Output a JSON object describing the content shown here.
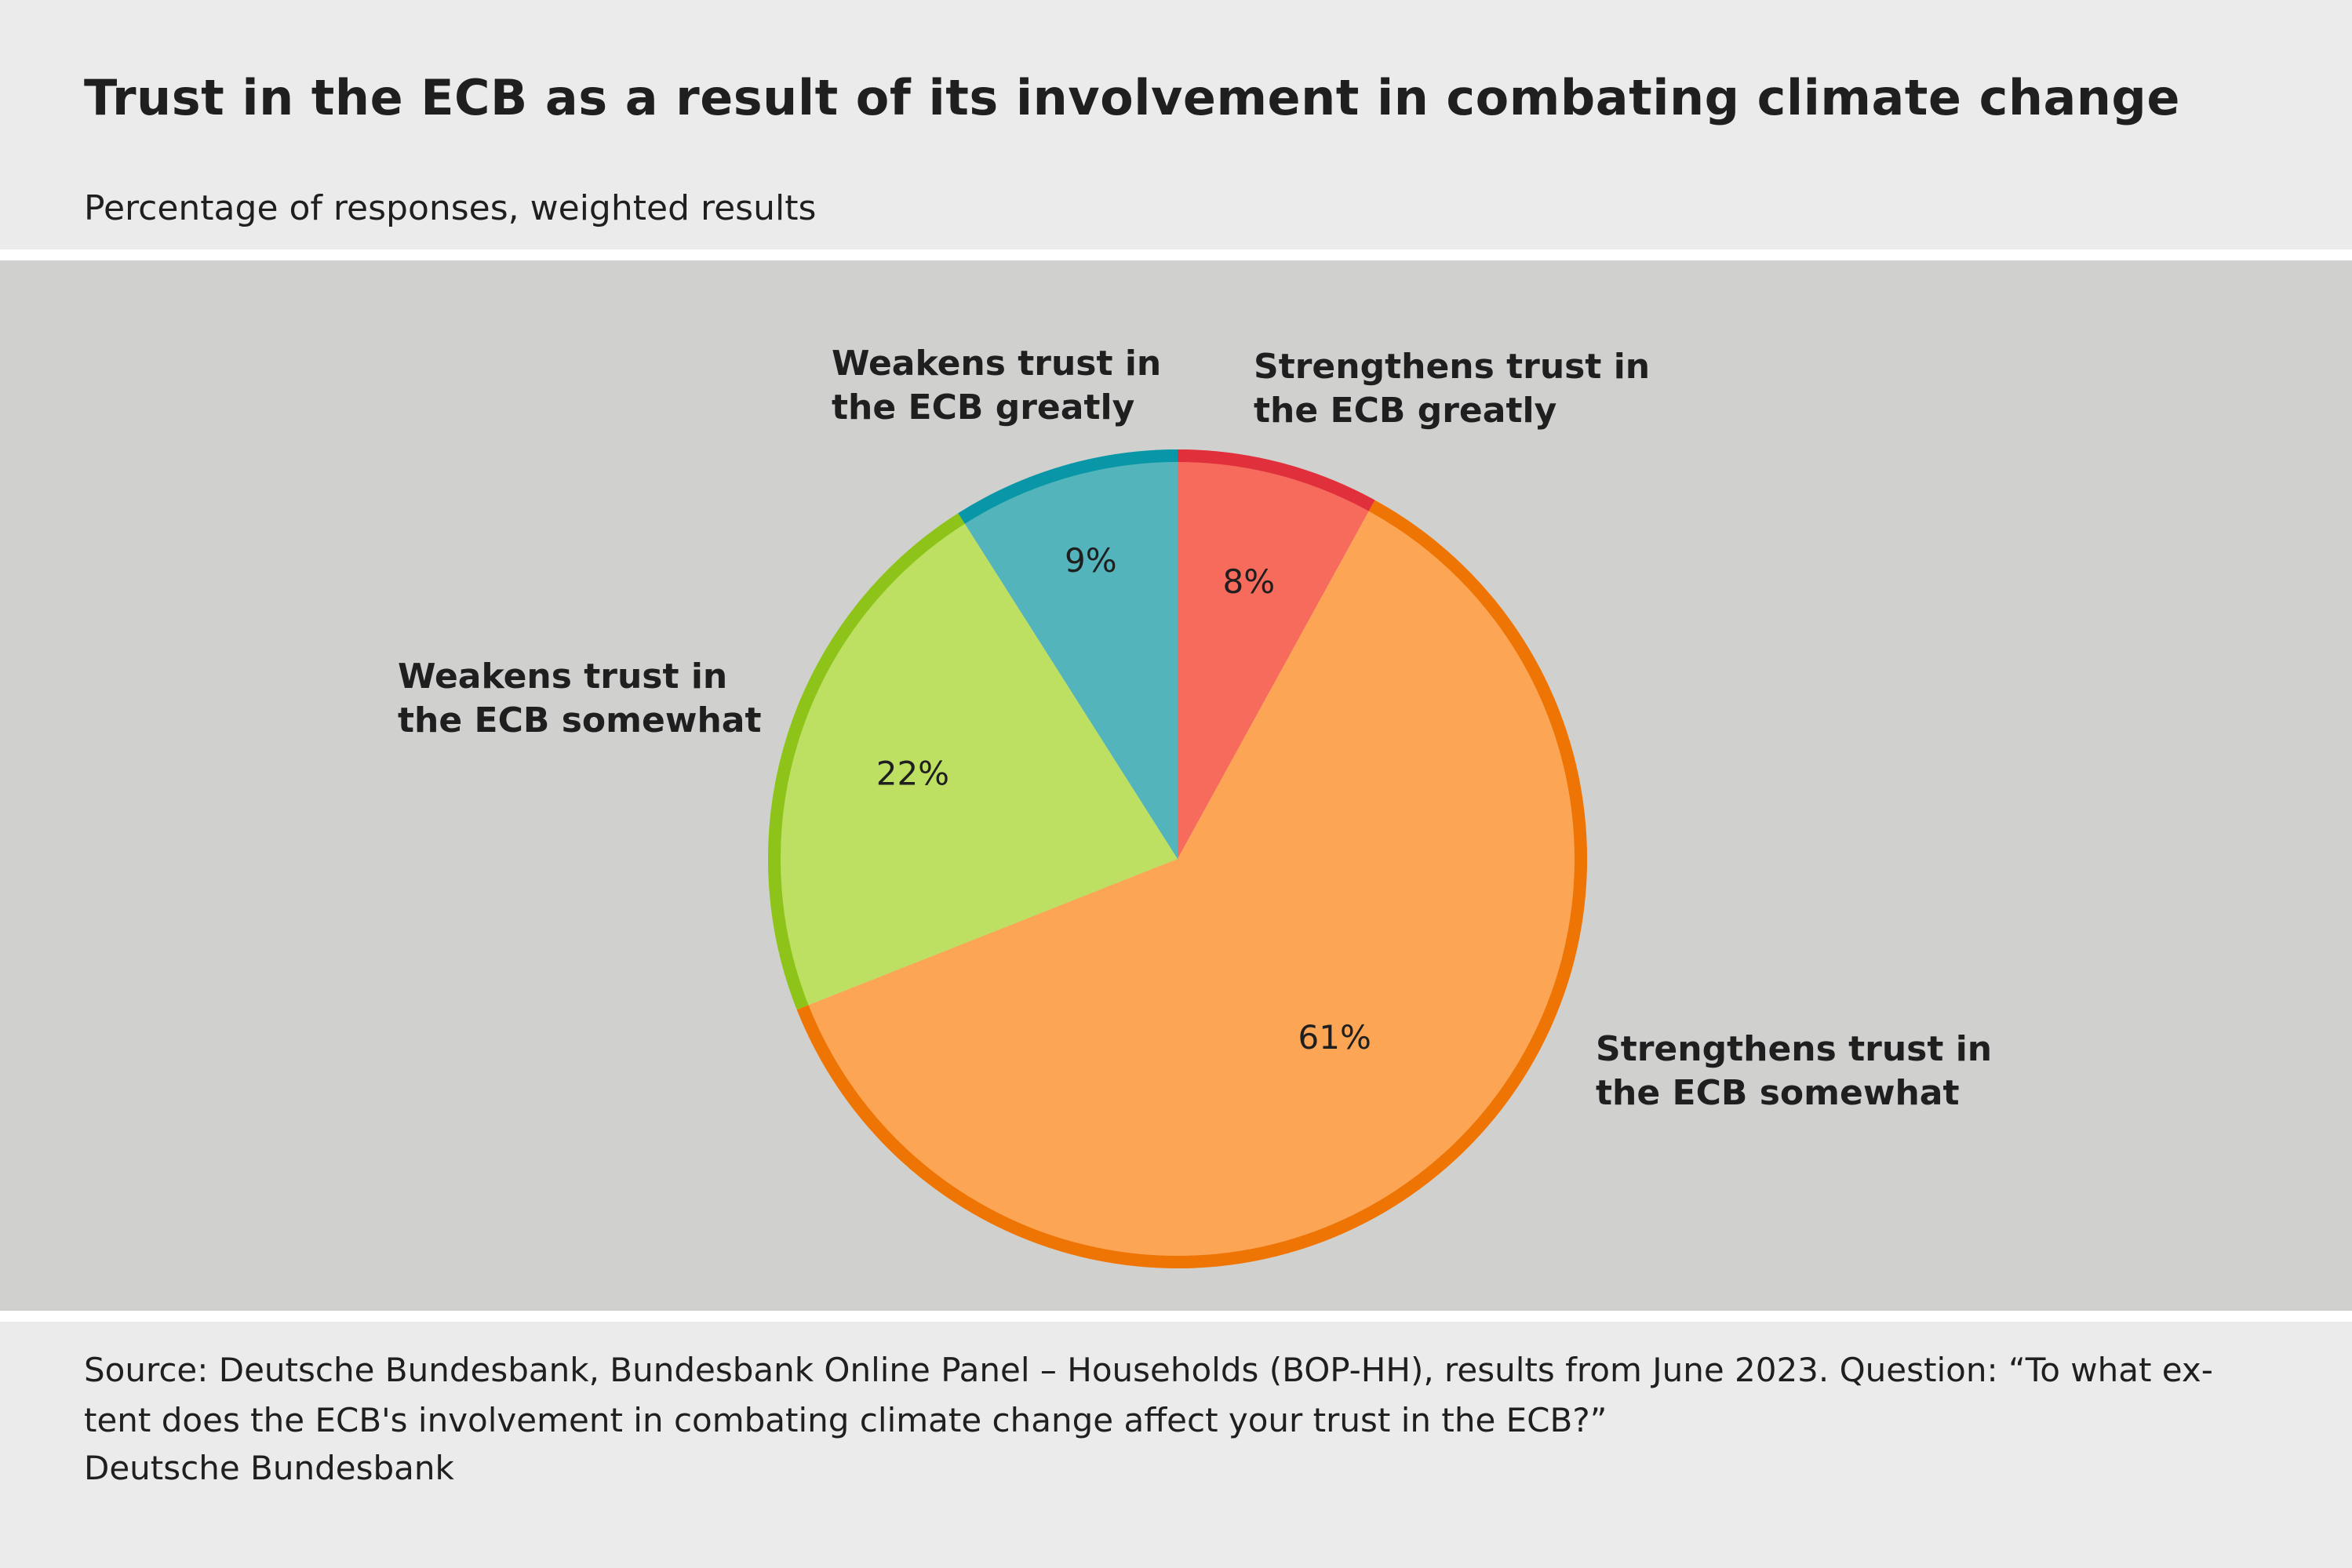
{
  "header": {
    "title": "Trust in the ECB as a result of its involvement in combating climate change",
    "subtitle": "Percentage of responses, weighted results"
  },
  "chart_data": {
    "type": "pie",
    "title": "Trust in the ECB as a result of its involvement in combating climate change",
    "subtitle": "Percentage of responses, weighted results",
    "start": "12 o'clock, clockwise",
    "slices": [
      {
        "label_lines": [
          "Strengthens trust in",
          "the ECB greatly"
        ],
        "value": 8,
        "value_label": "8%",
        "fill": "#f76b5c",
        "edge": "#e0303c"
      },
      {
        "label_lines": [
          "Strengthens trust in",
          "the ECB somewhat"
        ],
        "value": 61,
        "value_label": "61%",
        "fill": "#fca554",
        "edge": "#ee7404"
      },
      {
        "label_lines": [
          "Weakens trust in",
          "the ECB somewhat"
        ],
        "value": 22,
        "value_label": "22%",
        "fill": "#bde063",
        "edge": "#8ec41a"
      },
      {
        "label_lines": [
          "Weakens trust in",
          "the ECB greatly"
        ],
        "value": 9,
        "value_label": "9%",
        "fill": "#53b5bb",
        "edge": "#0997a8"
      }
    ]
  },
  "footer": {
    "source_line1": "Source: Deutsche Bundesbank, Bundesbank Online Panel – Households (BOP-HH), results from June 2023. Question: “To what ex-",
    "source_line2": "tent does the ECB's involvement in combating climate change affect your trust in the ECB?”",
    "org": "Deutsche Bundesbank"
  }
}
